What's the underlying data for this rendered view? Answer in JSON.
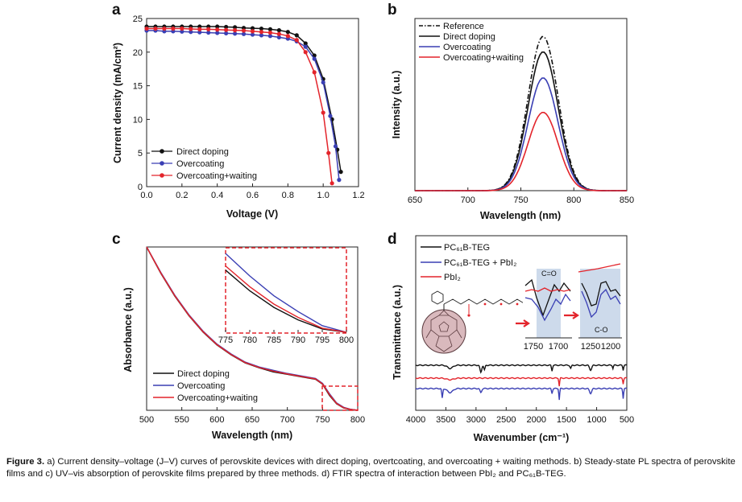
{
  "panels": {
    "a": {
      "letter": "a"
    },
    "b": {
      "letter": "b"
    },
    "c": {
      "letter": "c"
    },
    "d": {
      "letter": "d"
    }
  },
  "colors": {
    "black": "#111111",
    "blue": "#3a3fb4",
    "red": "#e3242b",
    "inset_box": "#e3242b",
    "band": "#c4d4e8"
  },
  "chart_data": [
    {
      "id": "a",
      "type": "line",
      "xlabel": "Voltage (V)",
      "ylabel": "Current density (mA/cm²)",
      "xlim": [
        0,
        1.2
      ],
      "ylim": [
        0,
        25
      ],
      "xticks": [
        "0.0",
        "0.2",
        "0.4",
        "0.6",
        "0.8",
        "1.0",
        "1.2"
      ],
      "yticks": [
        "0",
        "5",
        "10",
        "15",
        "20",
        "25"
      ],
      "legend_position": "bottom-center",
      "series": [
        {
          "name": "Direct doping",
          "color": "#111111",
          "x": [
            0,
            0.05,
            0.1,
            0.15,
            0.2,
            0.25,
            0.3,
            0.35,
            0.4,
            0.45,
            0.5,
            0.55,
            0.6,
            0.65,
            0.7,
            0.75,
            0.8,
            0.85,
            0.9,
            0.95,
            1.0,
            1.05,
            1.08,
            1.1
          ],
          "y": [
            23.8,
            23.8,
            23.8,
            23.8,
            23.8,
            23.8,
            23.8,
            23.8,
            23.8,
            23.75,
            23.7,
            23.6,
            23.55,
            23.5,
            23.4,
            23.25,
            23.0,
            22.5,
            21.3,
            19.5,
            16.0,
            10.0,
            5.5,
            2.2
          ]
        },
        {
          "name": "Overcoating",
          "color": "#3a3fb4",
          "x": [
            0,
            0.05,
            0.1,
            0.15,
            0.2,
            0.25,
            0.3,
            0.35,
            0.4,
            0.45,
            0.5,
            0.55,
            0.6,
            0.65,
            0.7,
            0.75,
            0.8,
            0.85,
            0.9,
            0.95,
            1.0,
            1.04,
            1.07,
            1.09
          ],
          "y": [
            23.2,
            23.2,
            23.1,
            23.1,
            23.05,
            23.0,
            22.95,
            22.9,
            22.85,
            22.8,
            22.75,
            22.7,
            22.6,
            22.5,
            22.4,
            22.2,
            22.0,
            21.6,
            20.8,
            19.0,
            15.5,
            10.5,
            6.0,
            1.0
          ]
        },
        {
          "name": "Overcoating+waiting",
          "color": "#e3242b",
          "x": [
            0,
            0.05,
            0.1,
            0.15,
            0.2,
            0.25,
            0.3,
            0.35,
            0.4,
            0.45,
            0.5,
            0.55,
            0.6,
            0.65,
            0.7,
            0.75,
            0.8,
            0.85,
            0.9,
            0.95,
            1.0,
            1.03,
            1.05
          ],
          "y": [
            23.5,
            23.5,
            23.5,
            23.5,
            23.5,
            23.45,
            23.4,
            23.4,
            23.35,
            23.3,
            23.25,
            23.2,
            23.1,
            23.0,
            22.9,
            22.7,
            22.4,
            21.8,
            20.0,
            17.0,
            11.0,
            5.0,
            0.5
          ]
        }
      ]
    },
    {
      "id": "b",
      "type": "line",
      "xlabel": "Wavelength (nm)",
      "ylabel": "Intensity (a.u.)",
      "xlim": [
        650,
        850
      ],
      "ylim": [
        0,
        1.45
      ],
      "xticks": [
        "650",
        "700",
        "750",
        "800",
        "850"
      ],
      "legend_position": "top-left",
      "series": [
        {
          "name": "Reference",
          "color": "#111111",
          "dash": "dash-dot",
          "peak_x": 771,
          "peak": 1.3,
          "width": 20
        },
        {
          "name": "Direct doping",
          "color": "#111111",
          "peak_x": 771,
          "peak": 1.17,
          "width": 20
        },
        {
          "name": "Overcoating",
          "color": "#3a3fb4",
          "peak_x": 771,
          "peak": 0.95,
          "width": 20
        },
        {
          "name": "Overcoating+waiting",
          "color": "#e3242b",
          "peak_x": 771,
          "peak": 0.66,
          "width": 20
        }
      ]
    },
    {
      "id": "c",
      "type": "line",
      "xlabel": "Wavelength (nm)",
      "ylabel": "Absorbance (a.u.)",
      "xlim": [
        500,
        800
      ],
      "ylim": [
        0,
        1
      ],
      "xticks": [
        "500",
        "550",
        "600",
        "650",
        "700",
        "750",
        "800"
      ],
      "legend_position": "bottom-center",
      "series": [
        {
          "name": "Direct doping",
          "color": "#111111",
          "x": [
            500,
            520,
            540,
            560,
            580,
            600,
            620,
            640,
            660,
            680,
            700,
            720,
            740,
            750,
            760,
            770,
            780,
            790,
            800
          ],
          "y": [
            1.0,
            0.84,
            0.7,
            0.58,
            0.48,
            0.4,
            0.34,
            0.29,
            0.26,
            0.235,
            0.22,
            0.205,
            0.19,
            0.16,
            0.09,
            0.04,
            0.015,
            0.005,
            0.0
          ]
        },
        {
          "name": "Overcoating",
          "color": "#3a3fb4",
          "x": [
            500,
            520,
            540,
            560,
            580,
            600,
            620,
            640,
            660,
            680,
            700,
            720,
            740,
            750,
            760,
            770,
            780,
            790,
            800
          ],
          "y": [
            1.0,
            0.845,
            0.705,
            0.585,
            0.485,
            0.405,
            0.345,
            0.295,
            0.265,
            0.245,
            0.225,
            0.21,
            0.195,
            0.165,
            0.1,
            0.045,
            0.018,
            0.006,
            0.0
          ]
        },
        {
          "name": "Overcoating+waiting",
          "color": "#e3242b",
          "x": [
            500,
            520,
            540,
            560,
            580,
            600,
            620,
            640,
            660,
            680,
            700,
            720,
            740,
            750,
            760,
            770,
            780,
            790,
            800
          ],
          "y": [
            1.0,
            0.842,
            0.702,
            0.582,
            0.482,
            0.402,
            0.342,
            0.292,
            0.262,
            0.24,
            0.222,
            0.207,
            0.192,
            0.162,
            0.095,
            0.042,
            0.016,
            0.005,
            0.0
          ]
        }
      ],
      "inset": {
        "xlim": [
          775,
          800
        ],
        "xticks": [
          "775",
          "780",
          "785",
          "790",
          "795",
          "800"
        ],
        "series": [
          {
            "name": "Direct doping",
            "color": "#111111",
            "x": [
              775,
              780,
              785,
              790,
              795,
              800
            ],
            "y": [
              0.75,
              0.5,
              0.3,
              0.15,
              0.04,
              0.0
            ]
          },
          {
            "name": "Overcoating",
            "color": "#3a3fb4",
            "x": [
              775,
              780,
              785,
              790,
              795,
              800
            ],
            "y": [
              0.95,
              0.68,
              0.44,
              0.25,
              0.08,
              0.0
            ]
          },
          {
            "name": "Overcoating+waiting",
            "color": "#e3242b",
            "x": [
              775,
              780,
              785,
              790,
              795,
              800
            ],
            "y": [
              0.8,
              0.55,
              0.34,
              0.18,
              0.05,
              0.0
            ]
          }
        ]
      }
    },
    {
      "id": "d",
      "type": "line",
      "xlabel": "Wavenumber (cm⁻¹)",
      "ylabel": "Transmittance (a.u.)",
      "xlim": [
        4000,
        500
      ],
      "reversed_x": true,
      "xticks": [
        "4000",
        "3500",
        "3000",
        "2500",
        "2000",
        "1500",
        "1000",
        "500"
      ],
      "legend_position": "top-left",
      "series": [
        {
          "name": "PC₆₁B-TEG",
          "color": "#111111"
        },
        {
          "name": "PC₆₁B-TEG + PbI₂",
          "color": "#3a3fb4"
        },
        {
          "name": "PbI₂",
          "color": "#e3242b"
        }
      ],
      "insets": [
        {
          "band_label": "C=O",
          "xticks": [
            "1750",
            "1700"
          ]
        },
        {
          "band_label": "C-O",
          "xticks": [
            "1250",
            "1200"
          ]
        }
      ]
    }
  ],
  "caption": {
    "fig_label": "Figure 3.",
    "text": "a) Current density–voltage (J–V) curves of perovskite devices with direct doping, overtcoating, and overcoating + waiting methods. b) Steady-state PL spectra of perovskite films and c) UV–vis absorption of perovskite films prepared by three methods. d) FTIR spectra of interaction between PbI₂ and PC₆₁B-TEG."
  }
}
